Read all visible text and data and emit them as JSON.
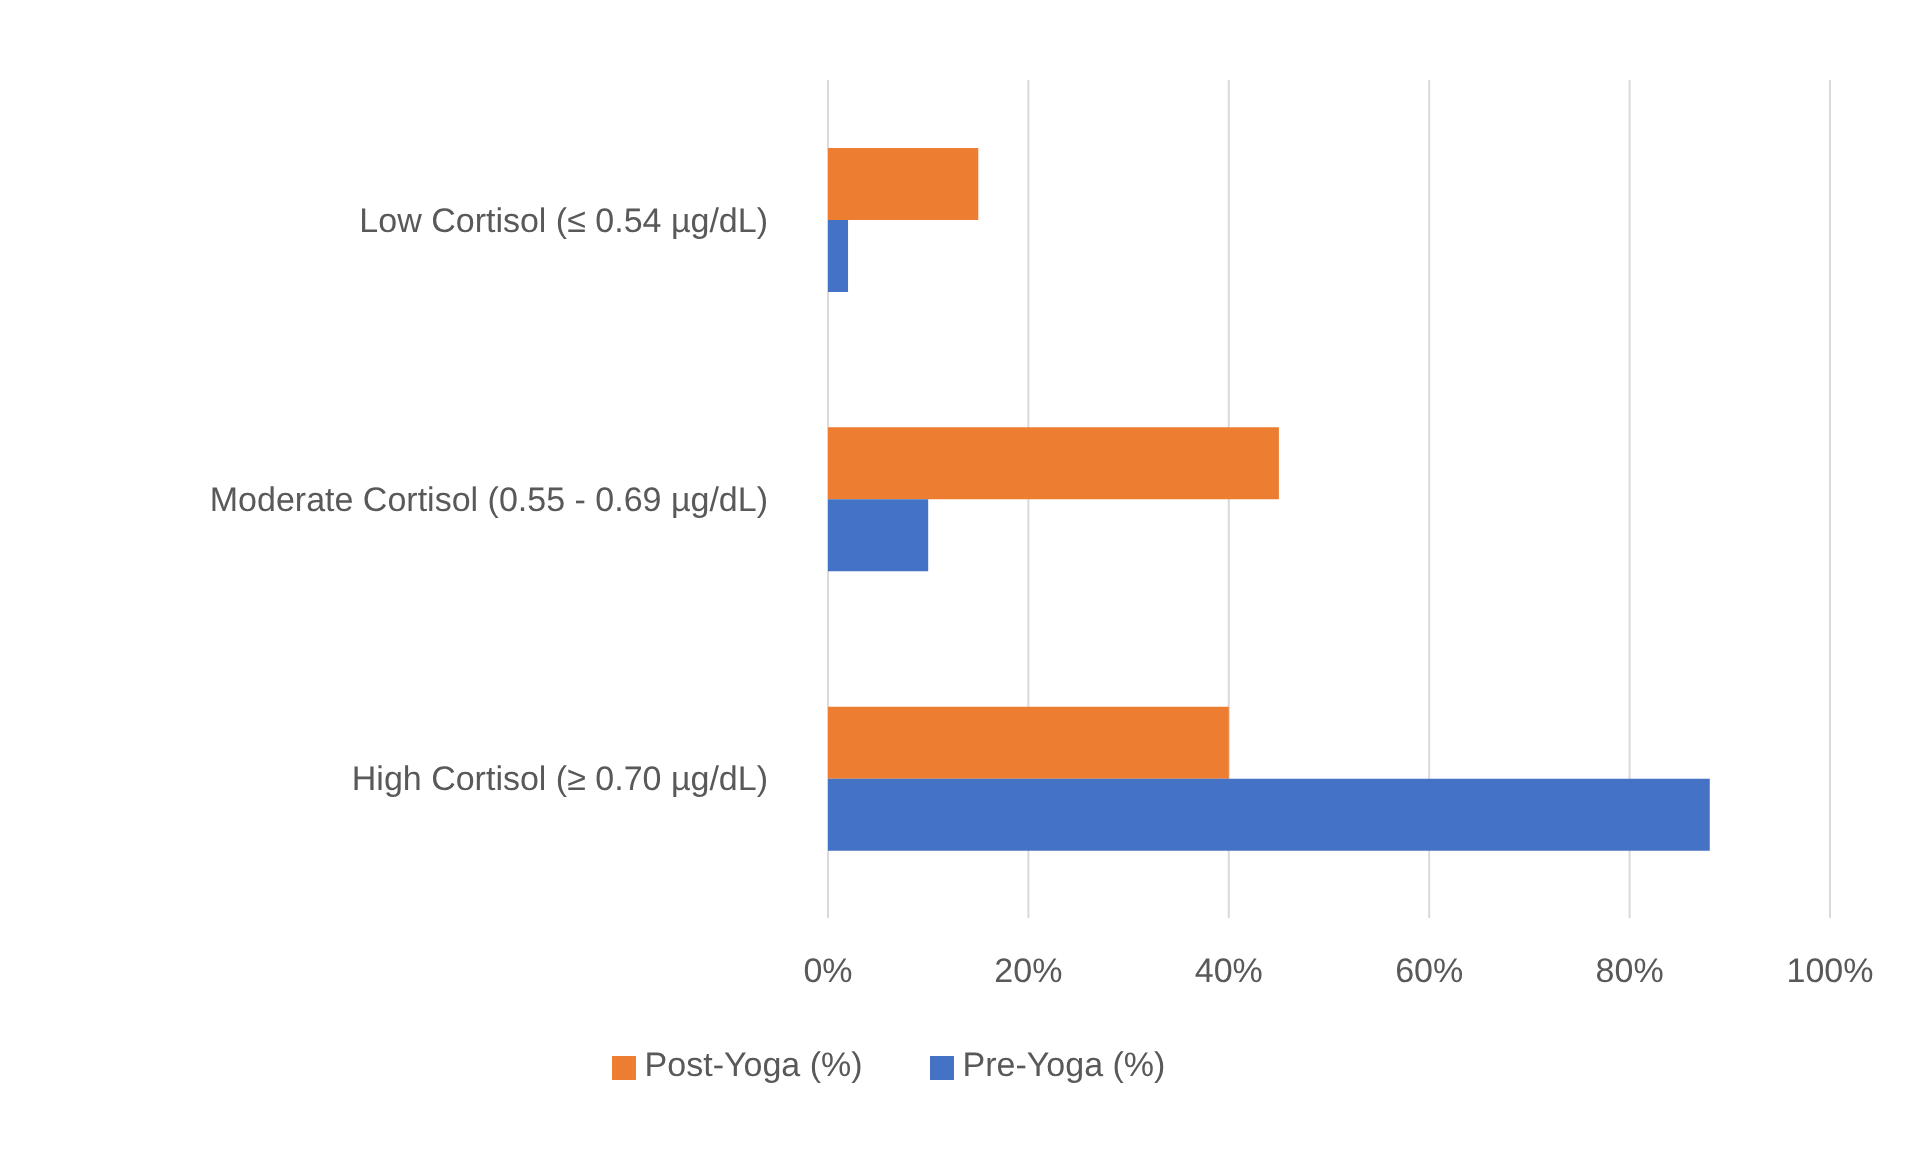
{
  "chart_data": {
    "type": "bar",
    "orientation": "horizontal",
    "categories": [
      "Low Cortisol (≤ 0.54 µg/dL)",
      "Moderate Cortisol (0.55 - 0.69 µg/dL)",
      "High Cortisol (≥ 0.70 µg/dL)"
    ],
    "series": [
      {
        "name": "Post-Yoga (%)",
        "color": "#ed7d31",
        "values": [
          15,
          45,
          40
        ]
      },
      {
        "name": "Pre-Yoga (%)",
        "color": "#4472c4",
        "values": [
          2,
          10,
          88
        ]
      }
    ],
    "xlim": [
      0,
      100
    ],
    "xticks": [
      {
        "value": 0,
        "label": "0%"
      },
      {
        "value": 20,
        "label": "20%"
      },
      {
        "value": 40,
        "label": "40%"
      },
      {
        "value": 60,
        "label": "60%"
      },
      {
        "value": 80,
        "label": "80%"
      },
      {
        "value": 100,
        "label": "100%"
      }
    ],
    "grid": "x",
    "legend": "bottom"
  }
}
